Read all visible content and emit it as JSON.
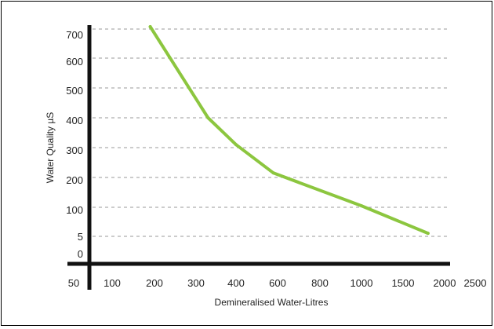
{
  "chart_data": {
    "type": "line",
    "title": "",
    "xlabel": "Demineralised Water-Litres",
    "ylabel": "Water Quality µS",
    "x_tick_labels": [
      "50",
      "100",
      "200",
      "300",
      "400",
      "600",
      "800",
      "1000",
      "1500",
      "2000",
      "2500"
    ],
    "y_tick_labels": [
      "0",
      "5",
      "100",
      "200",
      "300",
      "400",
      "500",
      "600",
      "700"
    ],
    "grid": "horizontal dashed",
    "line_color": "#8cc63f",
    "axis_color": "#111111",
    "grid_color": "#999999",
    "series": [
      {
        "points": [
          {
            "x": 190,
            "y": 725
          },
          {
            "x": 330,
            "y": 400
          },
          {
            "x": 400,
            "y": 310
          },
          {
            "x": 580,
            "y": 215
          },
          {
            "x": 1000,
            "y": 105
          },
          {
            "x": 1800,
            "y": 15
          }
        ]
      }
    ]
  }
}
